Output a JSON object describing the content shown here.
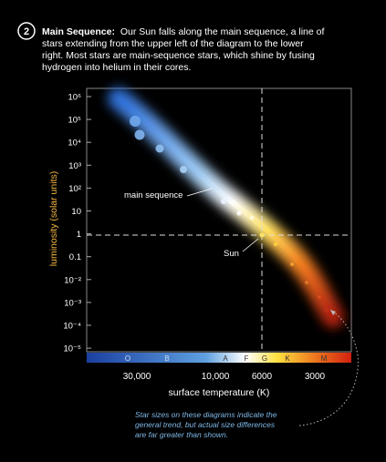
{
  "step": "2",
  "heading": "Main Sequence:",
  "body": [
    "Our Sun falls along the main sequence, a line of",
    "stars extending from the upper left of the diagram to the lower",
    "right. Most stars are main-sequence stars, which shine by fusing",
    "hydrogen into helium in their cores."
  ],
  "y_axis_label": "luminosity (solar units)",
  "y_ticks": [
    "10⁶",
    "10⁵",
    "10⁴",
    "10³",
    "10²",
    "10",
    "1",
    "0.1",
    "10⁻²",
    "10⁻³",
    "10⁻⁴",
    "10⁻⁵"
  ],
  "x_ticks": [
    "30,000",
    "10,000",
    "6000",
    "3000"
  ],
  "x_axis_label": "surface temperature (K)",
  "spectral_classes": [
    "O",
    "B",
    "A",
    "F",
    "G",
    "K",
    "M"
  ],
  "annotations": {
    "main_sequence": "main sequence",
    "sun": "Sun"
  },
  "footnote": [
    "Star sizes on these diagrams indicate the",
    "general trend, but actual size differences",
    "are far greater than shown."
  ]
}
